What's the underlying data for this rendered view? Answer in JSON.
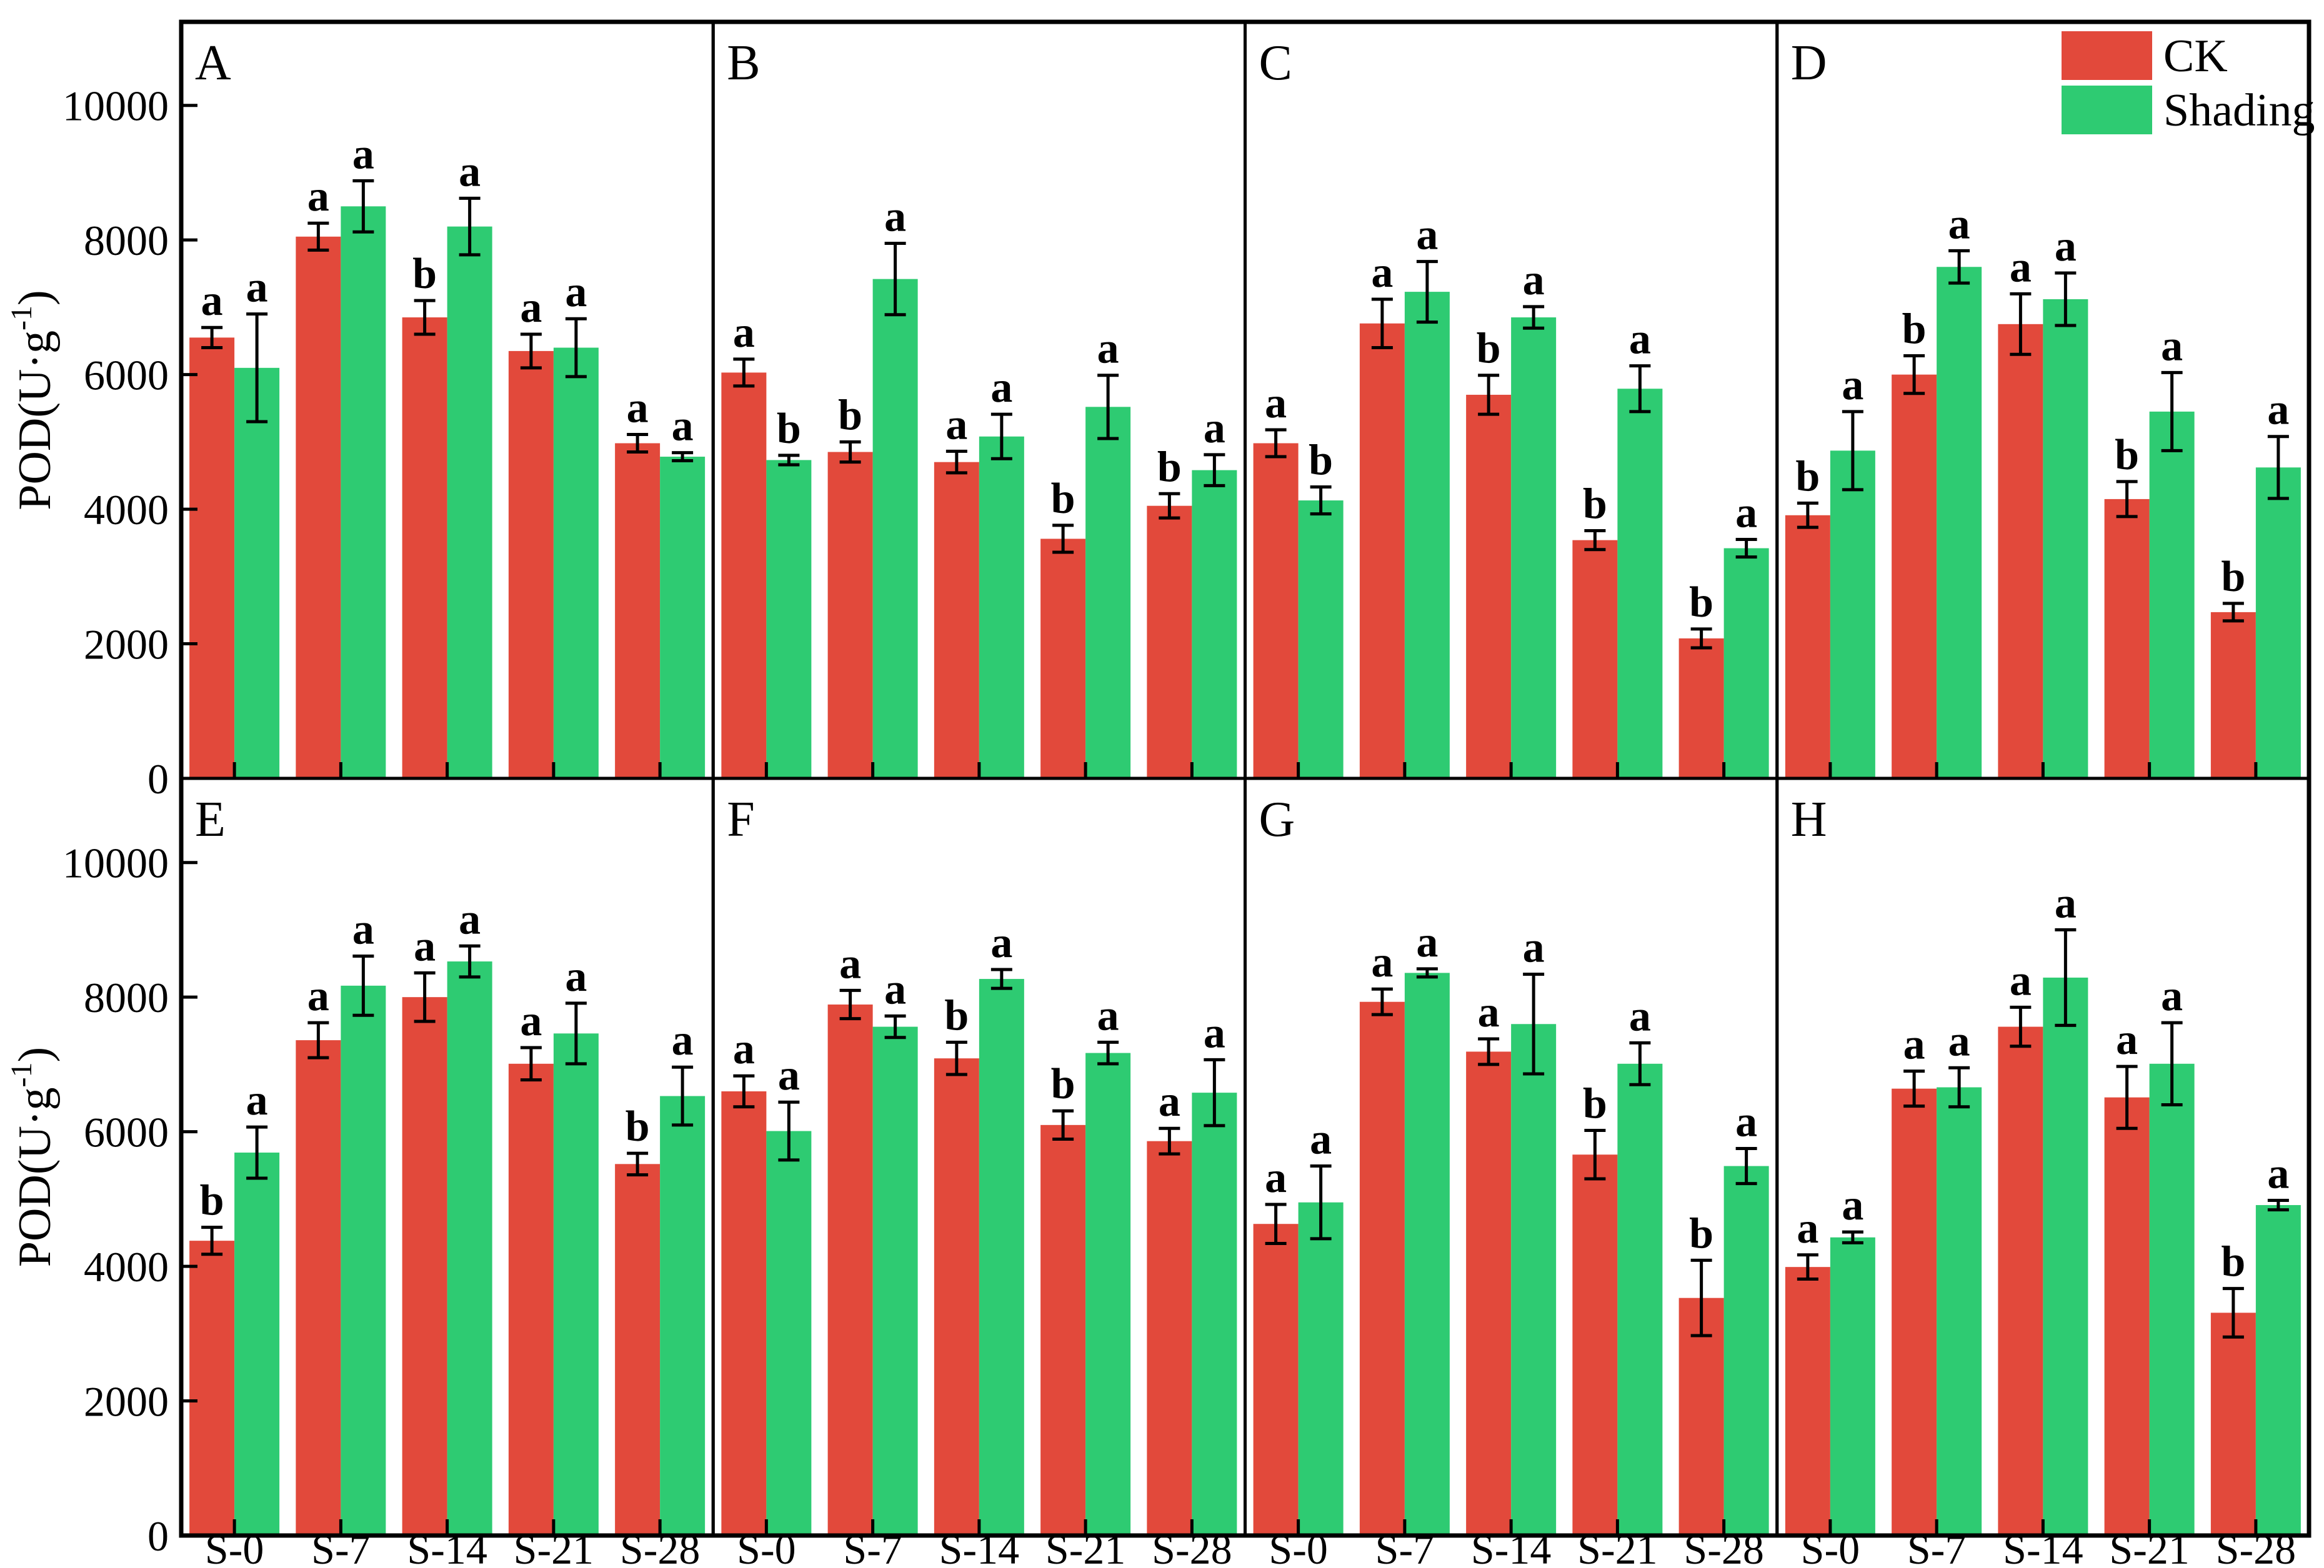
{
  "figure": {
    "background": "#ffffff",
    "axis_color": "#000000",
    "ylabel": {
      "main": "POD(U·g",
      "sup": "-1",
      "close": ")"
    },
    "ytick_labels": [
      "0",
      "2000",
      "4000",
      "6000",
      "8000",
      "10000"
    ],
    "ytick_values": [
      0,
      2000,
      4000,
      6000,
      8000,
      10000
    ],
    "categories": [
      "S-0",
      "S-7",
      "S-14",
      "S-21",
      "S-28"
    ],
    "legend": {
      "items": [
        {
          "label": "CK",
          "color": "#e2493b"
        },
        {
          "label": "Shading",
          "color": "#2ecb72"
        }
      ]
    },
    "series_colors": {
      "CK": "#e2493b",
      "Shading": "#2ecb72"
    }
  },
  "chart_data": [
    {
      "panel": "A",
      "type": "bar",
      "categories": [
        "S-0",
        "S-7",
        "S-14",
        "S-21",
        "S-28"
      ],
      "ylabel": "POD(U·g-1)",
      "ylim": [
        0,
        11200
      ],
      "grid": false,
      "series": [
        {
          "name": "CK",
          "values": [
            6550,
            8050,
            6850,
            6350,
            4980
          ],
          "errors": [
            150,
            200,
            250,
            250,
            130
          ],
          "sig_letters": [
            "a",
            "a",
            "b",
            "a",
            "a"
          ]
        },
        {
          "name": "Shading",
          "values": [
            6100,
            8500,
            8200,
            6400,
            4780
          ],
          "errors": [
            800,
            380,
            420,
            430,
            60
          ],
          "sig_letters": [
            "a",
            "a",
            "a",
            "a",
            "a"
          ]
        }
      ]
    },
    {
      "panel": "B",
      "type": "bar",
      "categories": [
        "S-0",
        "S-7",
        "S-14",
        "S-21",
        "S-28"
      ],
      "ylabel": "POD(U·g-1)",
      "ylim": [
        0,
        11200
      ],
      "grid": false,
      "series": [
        {
          "name": "CK",
          "values": [
            6030,
            4850,
            4700,
            3560,
            4050
          ],
          "errors": [
            200,
            150,
            160,
            200,
            180
          ],
          "sig_letters": [
            "a",
            "b",
            "a",
            "b",
            "b"
          ]
        },
        {
          "name": "Shading",
          "values": [
            4730,
            7420,
            5080,
            5520,
            4580
          ],
          "errors": [
            70,
            530,
            330,
            470,
            230
          ],
          "sig_letters": [
            "b",
            "a",
            "a",
            "a",
            "a"
          ]
        }
      ]
    },
    {
      "panel": "C",
      "type": "bar",
      "categories": [
        "S-0",
        "S-7",
        "S-14",
        "S-21",
        "S-28"
      ],
      "ylabel": "POD(U·g-1)",
      "ylim": [
        0,
        11200
      ],
      "grid": false,
      "series": [
        {
          "name": "CK",
          "values": [
            4980,
            6760,
            5700,
            3540,
            2080
          ],
          "errors": [
            200,
            360,
            290,
            140,
            140
          ],
          "sig_letters": [
            "a",
            "a",
            "b",
            "b",
            "b"
          ]
        },
        {
          "name": "Shading",
          "values": [
            4130,
            7230,
            6850,
            5790,
            3420
          ],
          "errors": [
            200,
            450,
            160,
            340,
            130
          ],
          "sig_letters": [
            "b",
            "a",
            "a",
            "a",
            "a"
          ]
        }
      ]
    },
    {
      "panel": "D",
      "type": "bar",
      "categories": [
        "S-0",
        "S-7",
        "S-14",
        "S-21",
        "S-28"
      ],
      "ylabel": "POD(U·g-1)",
      "ylim": [
        0,
        11200
      ],
      "grid": false,
      "series": [
        {
          "name": "CK",
          "values": [
            3910,
            6000,
            6750,
            4150,
            2470
          ],
          "errors": [
            180,
            280,
            450,
            260,
            130
          ],
          "sig_letters": [
            "b",
            "b",
            "a",
            "b",
            "b"
          ]
        },
        {
          "name": "Shading",
          "values": [
            4870,
            7600,
            7120,
            5450,
            4620
          ],
          "errors": [
            580,
            240,
            390,
            580,
            460
          ],
          "sig_letters": [
            "a",
            "a",
            "a",
            "a",
            "a"
          ]
        }
      ]
    },
    {
      "panel": "E",
      "type": "bar",
      "categories": [
        "S-0",
        "S-7",
        "S-14",
        "S-21",
        "S-28"
      ],
      "ylabel": "POD(U·g-1)",
      "ylim": [
        0,
        11200
      ],
      "grid": false,
      "series": [
        {
          "name": "CK",
          "values": [
            4380,
            7360,
            8000,
            7010,
            5520
          ],
          "errors": [
            200,
            260,
            360,
            240,
            160
          ],
          "sig_letters": [
            "b",
            "a",
            "a",
            "a",
            "b"
          ]
        },
        {
          "name": "Shading",
          "values": [
            5690,
            8170,
            8530,
            7460,
            6530
          ],
          "errors": [
            380,
            440,
            230,
            450,
            430
          ],
          "sig_letters": [
            "a",
            "a",
            "a",
            "a",
            "a"
          ]
        }
      ]
    },
    {
      "panel": "F",
      "type": "bar",
      "categories": [
        "S-0",
        "S-7",
        "S-14",
        "S-21",
        "S-28"
      ],
      "ylabel": "POD(U·g-1)",
      "ylim": [
        0,
        11200
      ],
      "grid": false,
      "series": [
        {
          "name": "CK",
          "values": [
            6600,
            7890,
            7090,
            6100,
            5860
          ],
          "errors": [
            230,
            210,
            240,
            210,
            190
          ],
          "sig_letters": [
            "a",
            "a",
            "b",
            "b",
            "a"
          ]
        },
        {
          "name": "Shading",
          "values": [
            6010,
            7560,
            8270,
            7170,
            6580
          ],
          "errors": [
            430,
            160,
            140,
            160,
            490
          ],
          "sig_letters": [
            "a",
            "a",
            "a",
            "a",
            "a"
          ]
        }
      ]
    },
    {
      "panel": "G",
      "type": "bar",
      "categories": [
        "S-0",
        "S-7",
        "S-14",
        "S-21",
        "S-28"
      ],
      "ylabel": "POD(U·g-1)",
      "ylim": [
        0,
        11200
      ],
      "grid": false,
      "series": [
        {
          "name": "CK",
          "values": [
            4630,
            7930,
            7190,
            5660,
            3530
          ],
          "errors": [
            290,
            190,
            190,
            360,
            560
          ],
          "sig_letters": [
            "a",
            "a",
            "a",
            "b",
            "b"
          ]
        },
        {
          "name": "Shading",
          "values": [
            4950,
            8360,
            7600,
            7010,
            5490
          ],
          "errors": [
            540,
            60,
            740,
            310,
            260
          ],
          "sig_letters": [
            "a",
            "a",
            "a",
            "a",
            "a"
          ]
        }
      ]
    },
    {
      "panel": "H",
      "type": "bar",
      "categories": [
        "S-0",
        "S-7",
        "S-14",
        "S-21",
        "S-28"
      ],
      "ylabel": "POD(U·g-1)",
      "ylim": [
        0,
        11200
      ],
      "grid": false,
      "series": [
        {
          "name": "CK",
          "values": [
            3990,
            6640,
            7560,
            6510,
            3310
          ],
          "errors": [
            180,
            260,
            290,
            460,
            360
          ],
          "sig_letters": [
            "a",
            "a",
            "a",
            "a",
            "b"
          ]
        },
        {
          "name": "Shading",
          "values": [
            4430,
            6660,
            8290,
            7010,
            4910
          ],
          "errors": [
            80,
            290,
            710,
            610,
            70
          ],
          "sig_letters": [
            "a",
            "a",
            "a",
            "a",
            "a"
          ]
        }
      ]
    }
  ]
}
